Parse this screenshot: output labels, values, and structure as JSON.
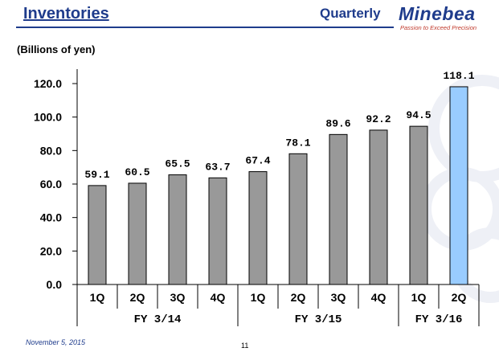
{
  "header": {
    "title": "Inventories",
    "subtitle": "Quarterly",
    "logo_name": "Minebea",
    "logo_tagline": "Passion to Exceed Precision"
  },
  "unit_label": "(Billions of yen)",
  "footer": {
    "date": "November 5, 2015",
    "page_number": "11"
  },
  "colors": {
    "brand": "#1f3c8c",
    "bar_default": "#999999",
    "bar_highlight": "#99ccff"
  },
  "chart_data": {
    "type": "bar",
    "title": "",
    "xlabel": "",
    "ylabel": "",
    "ylim": [
      0,
      120
    ],
    "yticks": [
      "0.0",
      "20.0",
      "40.0",
      "60.0",
      "80.0",
      "100.0",
      "120.0"
    ],
    "categories": [
      "1Q",
      "2Q",
      "3Q",
      "4Q",
      "1Q",
      "2Q",
      "3Q",
      "4Q",
      "1Q",
      "2Q"
    ],
    "values": [
      59.1,
      60.5,
      65.5,
      63.7,
      67.4,
      78.1,
      89.6,
      92.2,
      94.5,
      118.1
    ],
    "value_labels": [
      "59.1",
      "60.5",
      "65.5",
      "63.7",
      "67.4",
      "78.1",
      "89.6",
      "92.2",
      "94.5",
      "118.1"
    ],
    "highlight_index": 9,
    "groups": [
      {
        "label": "FY 3/14",
        "start": 0,
        "end": 3
      },
      {
        "label": "FY 3/15",
        "start": 4,
        "end": 7
      },
      {
        "label": "FY 3/16",
        "start": 8,
        "end": 9
      }
    ],
    "grid": false,
    "legend": "none"
  }
}
